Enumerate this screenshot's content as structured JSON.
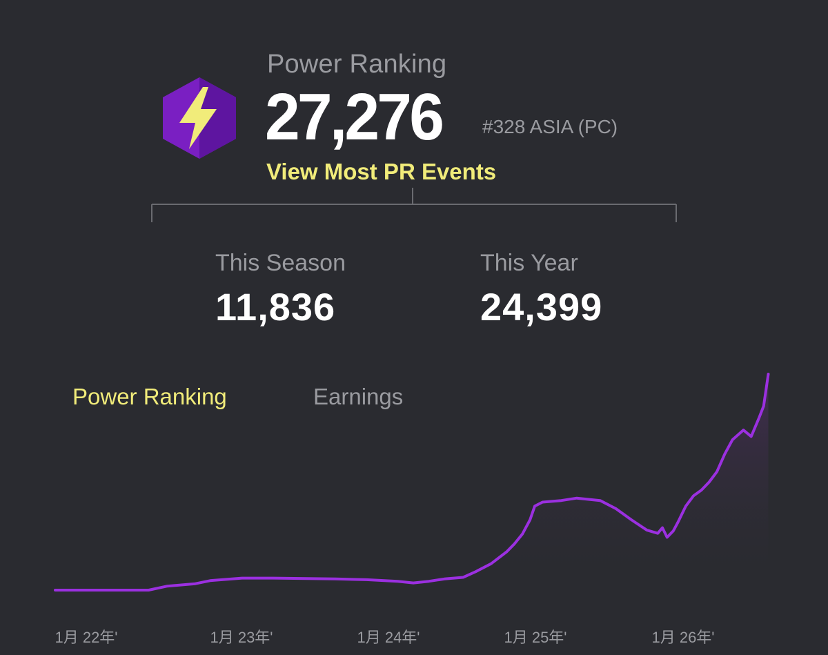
{
  "header": {
    "label": "Power Ranking",
    "value": "27,276",
    "rank": "#328 ASIA (PC)",
    "link": "View Most PR Events"
  },
  "stats": [
    {
      "label": "This Season",
      "value": "11,836"
    },
    {
      "label": "This Year",
      "value": "24,399"
    }
  ],
  "tabs": [
    {
      "label": "Power Ranking",
      "active": true
    },
    {
      "label": "Earnings",
      "active": false
    }
  ],
  "colors": {
    "background": "#2a2b30",
    "accent_yellow": "#f1ec7a",
    "line_purple": "#9b30e0",
    "muted_text": "#9a9ba0"
  },
  "icon": "lightning-bolt-hexagon",
  "chart_data": {
    "type": "area",
    "x_tick_labels": [
      "1月 22年'",
      "1月 23年'",
      "1月 24年'",
      "1月 25年'",
      "1月 26年'"
    ],
    "points": [
      [
        0.0,
        0.0
      ],
      [
        0.6,
        0.0
      ],
      [
        0.72,
        0.5
      ],
      [
        0.9,
        0.8
      ],
      [
        1.0,
        1.2
      ],
      [
        1.2,
        1.5
      ],
      [
        1.4,
        1.5
      ],
      [
        1.8,
        1.4
      ],
      [
        2.0,
        1.3
      ],
      [
        2.2,
        1.1
      ],
      [
        2.3,
        0.9
      ],
      [
        2.4,
        1.1
      ],
      [
        2.5,
        1.4
      ],
      [
        2.62,
        1.6
      ],
      [
        2.7,
        2.3
      ],
      [
        2.8,
        3.3
      ],
      [
        2.9,
        4.8
      ],
      [
        2.95,
        5.8
      ],
      [
        3.0,
        7.0
      ],
      [
        3.05,
        8.8
      ],
      [
        3.08,
        10.5
      ],
      [
        3.13,
        11.0
      ],
      [
        3.25,
        11.2
      ],
      [
        3.35,
        11.5
      ],
      [
        3.5,
        11.2
      ],
      [
        3.6,
        10.2
      ],
      [
        3.7,
        8.8
      ],
      [
        3.8,
        7.5
      ],
      [
        3.87,
        7.1
      ],
      [
        3.9,
        7.8
      ],
      [
        3.93,
        6.6
      ],
      [
        3.97,
        7.4
      ],
      [
        4.0,
        8.5
      ],
      [
        4.05,
        10.5
      ],
      [
        4.1,
        11.8
      ],
      [
        4.15,
        12.5
      ],
      [
        4.2,
        13.5
      ],
      [
        4.25,
        14.8
      ],
      [
        4.3,
        17.0
      ],
      [
        4.35,
        18.8
      ],
      [
        4.42,
        20.0
      ],
      [
        4.47,
        19.2
      ],
      [
        4.52,
        21.5
      ],
      [
        4.55,
        23.0
      ],
      [
        4.58,
        27.0
      ]
    ],
    "y_range": [
      0,
      27
    ],
    "x_range": [
      0,
      4.6
    ],
    "grid": false,
    "legend": "none"
  }
}
